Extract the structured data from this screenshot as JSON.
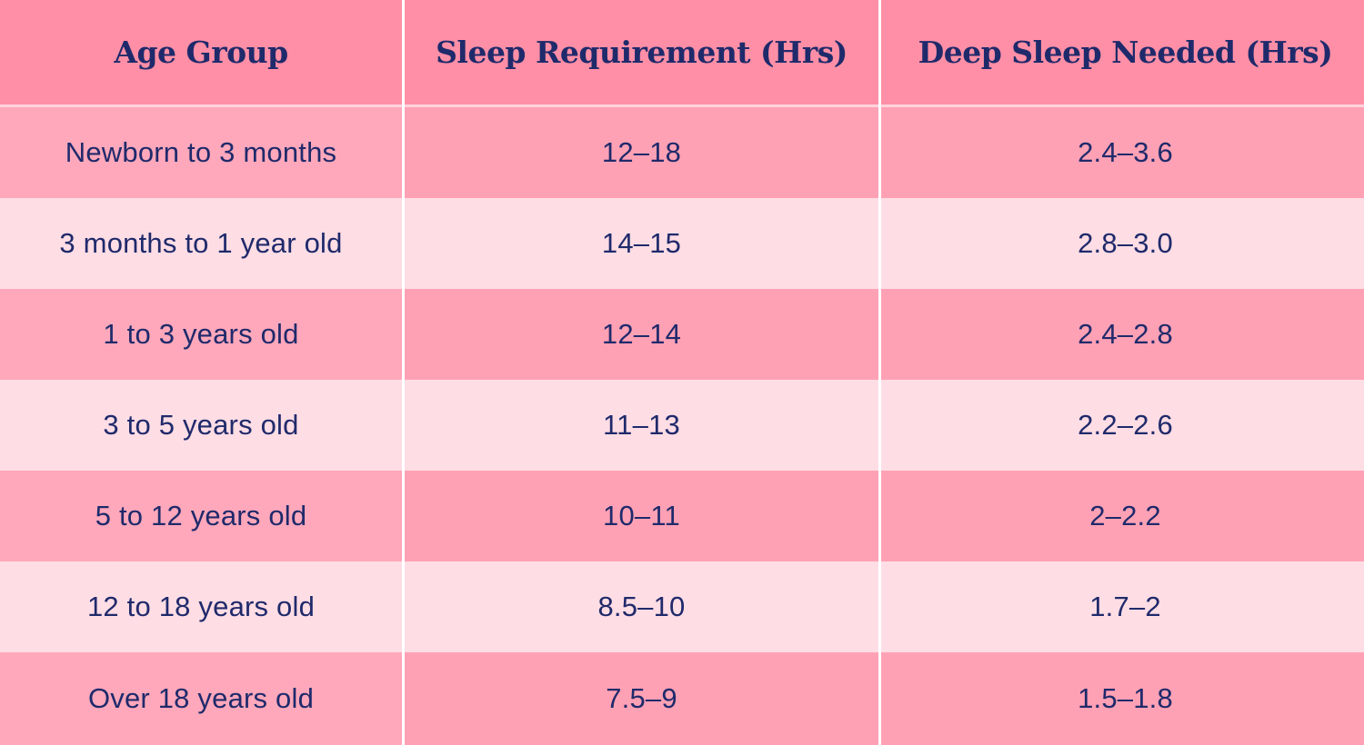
{
  "table": {
    "headers": [
      "Age Group",
      "Sleep Requirement (Hrs)",
      "Deep Sleep Needed (Hrs)"
    ],
    "rows": [
      [
        "Newborn to 3 months",
        "12–18",
        "2.4–3.6"
      ],
      [
        "3 months to 1 year old",
        "14–15",
        "2.8–3.0"
      ],
      [
        "1 to 3 years old",
        "12–14",
        "2.4–2.8"
      ],
      [
        "3 to 5 years old",
        "11–13",
        "2.2–2.6"
      ],
      [
        "5 to 12 years old",
        "10–11",
        "2–2.2"
      ],
      [
        "12 to 18 years old",
        "8.5–10",
        "1.7–2"
      ],
      [
        "Over 18 years old",
        "7.5–9",
        "1.5–1.8"
      ]
    ]
  },
  "colors": {
    "header_bg": "#ff8fa6",
    "row_dark_bg": "#ffa8bb",
    "row_light_bg": "#ffdde5",
    "text": "#1f2a6b"
  }
}
